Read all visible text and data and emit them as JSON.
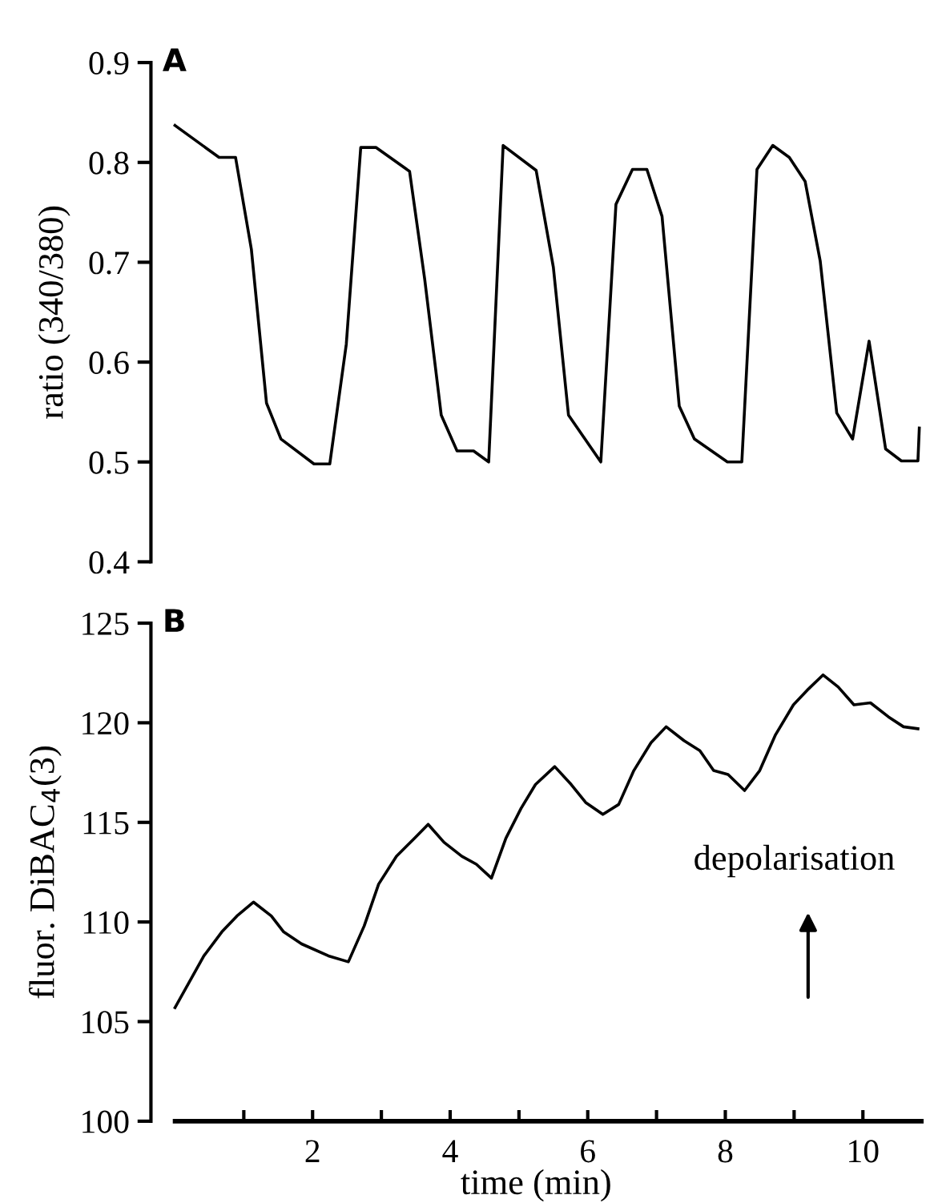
{
  "chart_data": [
    {
      "type": "line",
      "title": "A",
      "ylabel": "ratio (340/380)",
      "xticks": [
        2,
        4,
        6,
        8,
        10
      ],
      "ylim": [
        0.4,
        0.9
      ],
      "yticks": [
        0.4,
        0.5,
        0.6,
        0.7,
        0.8,
        0.9
      ],
      "tick_labels": "y",
      "marker": "none",
      "line_style": "solid",
      "series": [
        {
          "color": "#000000",
          "x": [
            0,
            0.64,
            0.88,
            1.11,
            1.33,
            1.54,
            2.02,
            2.25,
            2.49,
            2.7,
            2.92,
            3.41,
            3.63,
            3.87,
            4.1,
            4.34,
            4.56,
            4.77,
            5.25,
            5.5,
            5.72,
            6.19,
            6.41,
            6.65,
            6.86,
            7.08,
            7.33,
            7.55,
            8.03,
            8.24,
            8.46,
            8.69,
            8.93,
            9.16,
            9.38,
            9.62,
            9.85,
            10.09,
            10.33,
            10.56,
            10.8,
            10.82
          ],
          "values": [
            0.837,
            0.805,
            0.805,
            0.713,
            0.559,
            0.523,
            0.498,
            0.498,
            0.618,
            0.815,
            0.815,
            0.791,
            0.683,
            0.547,
            0.511,
            0.511,
            0.5,
            0.817,
            0.792,
            0.695,
            0.547,
            0.5,
            0.758,
            0.793,
            0.793,
            0.746,
            0.556,
            0.523,
            0.5,
            0.5,
            0.793,
            0.817,
            0.805,
            0.781,
            0.701,
            0.549,
            0.523,
            0.621,
            0.513,
            0.501,
            0.501,
            0.534
          ]
        }
      ]
    },
    {
      "type": "line",
      "title": "B",
      "xlabel": "time (min)",
      "ylabel": "fluor. DiBAC$_{4}$(3)",
      "xlim": [
        -0.35,
        10.85
      ],
      "ylim": [
        100,
        125
      ],
      "yticks": [
        100,
        105,
        110,
        115,
        120,
        125
      ],
      "xticks": [
        {
          "value": 1,
          "label": null
        },
        2,
        {
          "value": 3,
          "label": null
        },
        4,
        {
          "value": 5,
          "label": null
        },
        6,
        {
          "value": 7,
          "label": null
        },
        8,
        {
          "value": 9,
          "label": null
        },
        10
      ],
      "marker": "none",
      "line_style": "solid",
      "annotations": [
        "depolarisation"
      ],
      "series": [
        {
          "color": "#000000",
          "x": [
            0,
            0.42,
            0.68,
            0.9,
            1.14,
            1.4,
            1.58,
            1.84,
            2.23,
            2.52,
            2.75,
            2.96,
            3.22,
            3.48,
            3.68,
            3.91,
            4.17,
            4.38,
            4.6,
            4.81,
            5.03,
            5.24,
            5.52,
            5.76,
            5.97,
            6.22,
            6.45,
            6.67,
            6.92,
            7.14,
            7.4,
            7.63,
            7.83,
            8.04,
            8.28,
            8.5,
            8.73,
            8.99,
            9.21,
            9.42,
            9.64,
            9.87,
            10.11,
            10.37,
            10.59,
            10.8
          ],
          "values": [
            105.7,
            108.3,
            109.5,
            110.3,
            111.0,
            110.3,
            109.5,
            108.9,
            108.3,
            108.0,
            109.8,
            111.9,
            113.3,
            114.2,
            114.9,
            114.0,
            113.3,
            112.9,
            112.2,
            114.2,
            115.7,
            116.9,
            117.8,
            116.9,
            116.0,
            115.4,
            115.9,
            117.6,
            119.0,
            119.8,
            119.1,
            118.6,
            117.6,
            117.4,
            116.6,
            117.6,
            119.4,
            120.9,
            121.7,
            122.4,
            121.8,
            120.9,
            121.0,
            120.3,
            119.8,
            119.7
          ]
        }
      ]
    }
  ]
}
